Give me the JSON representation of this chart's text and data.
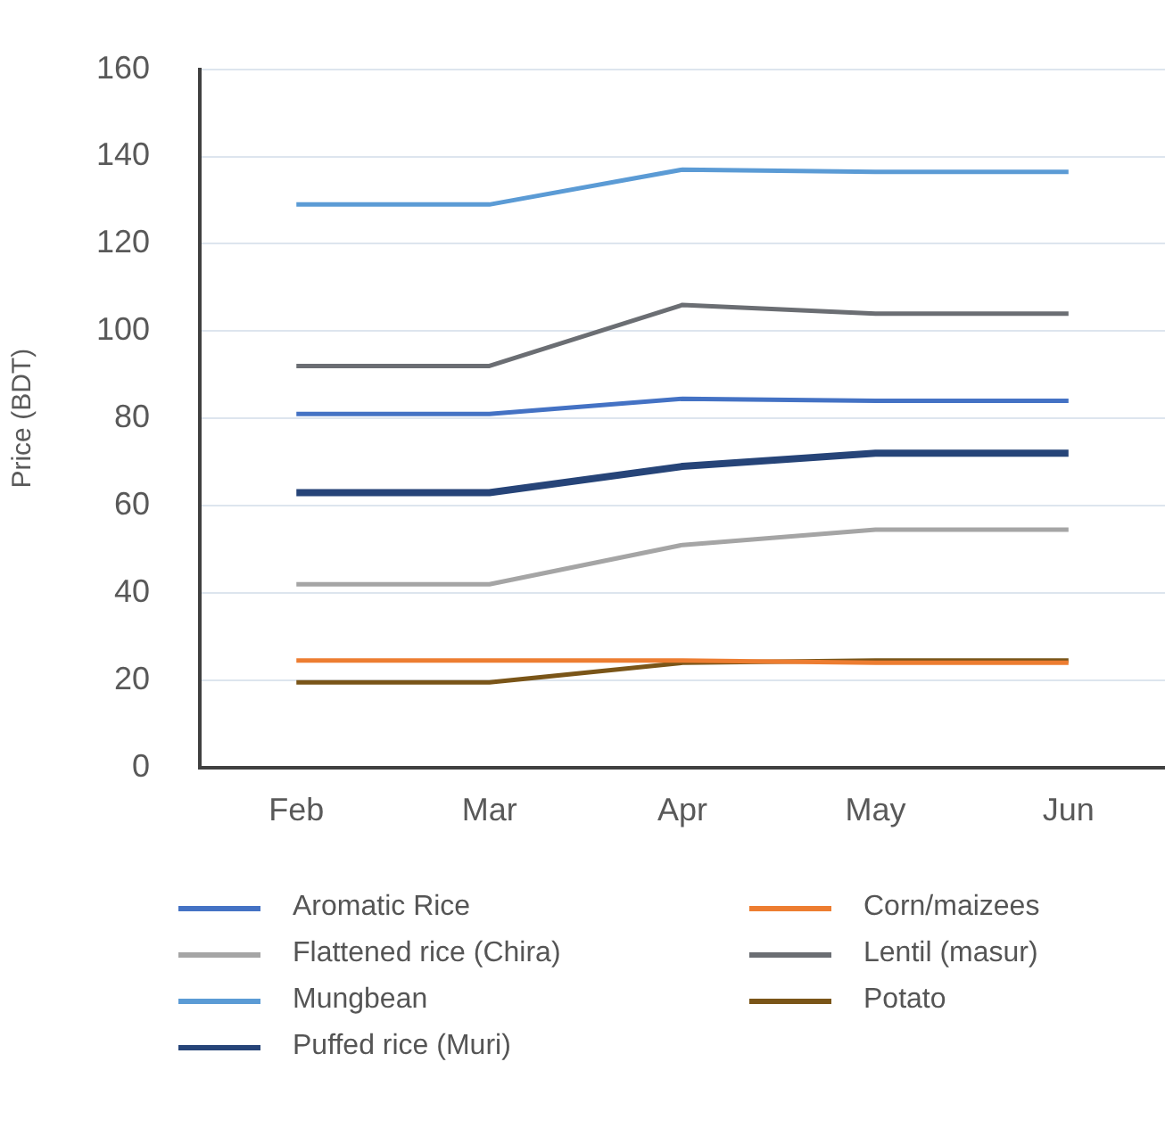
{
  "chart_data": {
    "type": "line",
    "ylabel": "Price (BDT)",
    "categories": [
      "Feb",
      "Mar",
      "Apr",
      "May",
      "Jun"
    ],
    "ylim": [
      0,
      160
    ],
    "yticks": [
      0,
      20,
      40,
      60,
      80,
      100,
      120,
      140,
      160
    ],
    "grid": "y",
    "legend": "bottom",
    "marker": "none",
    "line_style": "solid",
    "series": [
      {
        "name": "Aromatic Rice",
        "color": "#4472c4",
        "values": [
          81,
          81,
          84.5,
          84,
          84
        ]
      },
      {
        "name": "Corn/maizees",
        "color": "#ed7d31",
        "values": [
          24.5,
          24.5,
          24.5,
          24,
          24
        ]
      },
      {
        "name": "Flattened rice (Chira)",
        "color": "#a5a5a5",
        "values": [
          42,
          42,
          51,
          54.5,
          54.5
        ]
      },
      {
        "name": "Lentil (masur)",
        "color": "#6b6e73",
        "values": [
          92,
          92,
          106,
          104,
          104
        ]
      },
      {
        "name": "Mungbean",
        "color": "#5b9bd5",
        "values": [
          129,
          129,
          137,
          136.5,
          136.5
        ]
      },
      {
        "name": "Potato",
        "color": "#7a5518",
        "values": [
          19.5,
          19.5,
          24,
          24.5,
          24.5
        ]
      },
      {
        "name": "Puffed rice (Muri)",
        "color": "#264478",
        "values": [
          63,
          63,
          69,
          72,
          72
        ]
      }
    ]
  }
}
